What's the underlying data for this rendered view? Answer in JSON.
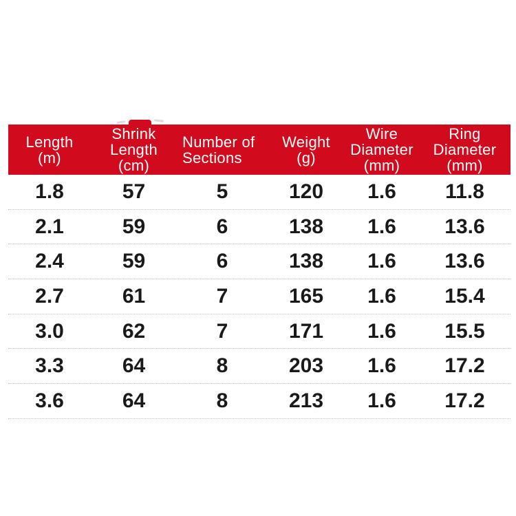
{
  "page": {
    "background_color": "#ffffff",
    "description": "Product specification table"
  },
  "table": {
    "accent_color": "#d20a1d",
    "header_text_color": "#ffffff",
    "body_text_color": "#1a1a1a",
    "separator_color": "#c2c2c2",
    "columns": [
      {
        "id": "length",
        "label": "Length\n(m)"
      },
      {
        "id": "shrink-length",
        "label": "Shrink\nLength\n(cm)"
      },
      {
        "id": "sections",
        "label": "Number of\nSections"
      },
      {
        "id": "weight",
        "label": "Weight\n(g)"
      },
      {
        "id": "wire-diameter",
        "label": "Wire\nDiameter\n(mm)"
      },
      {
        "id": "ring-diameter",
        "label": "Ring\nDiameter\n(mm)"
      }
    ],
    "rows": [
      [
        "1.8",
        "57",
        "5",
        "120",
        "1.6",
        "11.8"
      ],
      [
        "2.1",
        "59",
        "6",
        "138",
        "1.6",
        "13.6"
      ],
      [
        "2.4",
        "59",
        "6",
        "138",
        "1.6",
        "13.6"
      ],
      [
        "2.7",
        "61",
        "7",
        "165",
        "1.6",
        "15.4"
      ],
      [
        "3.0",
        "62",
        "7",
        "171",
        "1.6",
        "15.5"
      ],
      [
        "3.3",
        "64",
        "8",
        "203",
        "1.6",
        "17.2"
      ],
      [
        "3.6",
        "64",
        "8",
        "213",
        "1.6",
        "17.2"
      ]
    ]
  },
  "chart_data": {
    "type": "table",
    "title": "",
    "columns": [
      "Length (m)",
      "Shrink Length (cm)",
      "Number of Sections",
      "Weight (g)",
      "Wire Diameter (mm)",
      "Ring Diameter (mm)"
    ],
    "rows": [
      [
        1.8,
        57,
        5,
        120,
        1.6,
        11.8
      ],
      [
        2.1,
        59,
        6,
        138,
        1.6,
        13.6
      ],
      [
        2.4,
        59,
        6,
        138,
        1.6,
        13.6
      ],
      [
        2.7,
        61,
        7,
        165,
        1.6,
        15.4
      ],
      [
        3.0,
        62,
        7,
        171,
        1.6,
        15.5
      ],
      [
        3.3,
        64,
        8,
        203,
        1.6,
        17.2
      ],
      [
        3.6,
        64,
        8,
        213,
        1.6,
        17.2
      ]
    ],
    "layout_hints": {
      "header_background": "#d20a1d",
      "header_text": "white",
      "row_separators": "dotted light gray",
      "values_bold": true
    }
  }
}
